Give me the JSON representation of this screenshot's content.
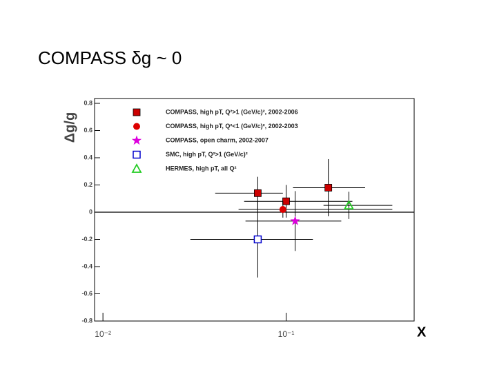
{
  "chart_data": {
    "type": "scatter",
    "title": "COMPASS δg ~ 0",
    "x_label": "X",
    "y_label": "Δg/g",
    "x_scale": "log",
    "xlim": [
      0.009,
      0.5
    ],
    "xticks": [
      {
        "value": 0.01,
        "label": "10⁻²"
      },
      {
        "value": 0.1,
        "label": "10⁻¹"
      }
    ],
    "ylim": [
      -0.8,
      0.8
    ],
    "yticks": [
      0.8,
      0.6,
      0.4,
      0.2,
      0,
      -0.2,
      -0.4,
      -0.6,
      -0.8
    ],
    "legend": "upper left",
    "series": [
      {
        "name": "COMPASS, high pT, Q²>1 (GeV/c)², 2002-2006",
        "color": "#cc0000",
        "marker": "square",
        "x": [
          0.07,
          0.1,
          0.17
        ],
        "values": [
          0.14,
          0.08,
          0.18
        ],
        "yerr": [
          0.12,
          0.12,
          0.21
        ],
        "xmin": [
          0.041,
          0.059,
          0.109
        ],
        "xmax": [
          0.096,
          0.23,
          0.27
        ]
      },
      {
        "name": "COMPASS, high pT, Q²<1 (GeV/c)², 2002-2003",
        "color": "#dd0000",
        "marker": "circle",
        "x": [
          0.096
        ],
        "values": [
          0.02
        ],
        "yerr": [
          0.06
        ],
        "xmin": [
          0.055
        ],
        "xmax": [
          0.38
        ]
      },
      {
        "name": "COMPASS, open charm, 2002-2007",
        "color": "#dd00dd",
        "marker": "star",
        "x": [
          0.112
        ],
        "values": [
          -0.065
        ],
        "yerr": [
          0.22
        ],
        "xmin": [
          0.06
        ],
        "xmax": [
          0.2
        ]
      },
      {
        "name": "SMC, high pT, Q²>1 (GeV/c)²",
        "color": "#0000cc",
        "marker": "open-square",
        "x": [
          0.07
        ],
        "values": [
          -0.2
        ],
        "yerr": [
          0.28
        ],
        "xmin": [
          0.03
        ],
        "xmax": [
          0.14
        ]
      },
      {
        "name": "HERMES, high pT, all Q²",
        "color": "#22cc22",
        "marker": "open-triangle",
        "x": [
          0.22
        ],
        "values": [
          0.05
        ],
        "yerr": [
          0.1
        ],
        "xmin": [
          0.16
        ],
        "xmax": [
          0.38
        ]
      }
    ]
  }
}
